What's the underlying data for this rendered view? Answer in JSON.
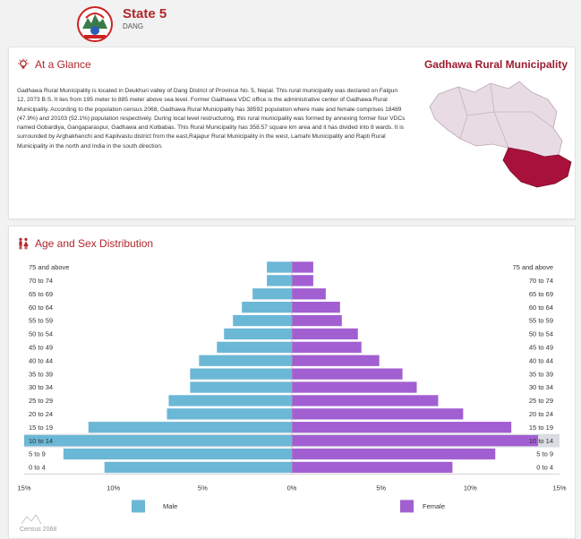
{
  "header": {
    "title": "State 5",
    "subtitle": "DANG"
  },
  "glance": {
    "heading": "At a Glance",
    "region_title": "Gadhawa Rural Municipality",
    "description": "Gadhawa Rural Municipality is located in Deukhuri valley of Dang District of Province No. 5, Nepal. This rural municipality was declared on Falgun 12, 2073 B.S. It lies from 195 meter to 885 meter above sea level. Former Gadhawa VDC office is the administrative center of Gadhawa Rural Municipality. According to the population census 2068, Gadhawa Rural Municipality has 38592 population where male and female comprises 18489 (47.9%) and 20103 (52.1%) population respectively. During local level restructuring, this rural municipality was formed by annexing former four VDCs named Gobardiya, Gangaparaspur, Gadhawa and Kolbabas. This Rural Municipality has 358.57 square km area and it has divided into 8 wards. It is surrounded by Arghakhanchi and Kapilvastu district from the east,Rajapur Rural Municipality in the west, Lamahi Municipality and Rapti Rural Municipality in the north and India in the south direction."
  },
  "age_sex": {
    "heading": "Age and Sex Distribution",
    "footer": "Census 2068"
  },
  "colors": {
    "male": "#6bb7d6",
    "female": "#a25fd1",
    "accent": "#b0262b",
    "map_base": "#e8dbe4",
    "map_highlight": "#a8123a"
  },
  "icons": {
    "glance": "bulb-icon",
    "age_sex": "people-icon"
  },
  "chart_data": {
    "type": "bar",
    "orientation": "horizontal-population-pyramid",
    "categories": [
      "75 and above",
      "70 to 74",
      "65 to 69",
      "60 to 64",
      "55 to 59",
      "50 to 54",
      "45 to 49",
      "40 to 44",
      "35 to 39",
      "30 to 34",
      "25 to 29",
      "20 to 24",
      "15 to 19",
      "10 to 14",
      "5 to 9",
      "0 to 4"
    ],
    "series": [
      {
        "name": "Male",
        "values": [
          1.4,
          1.4,
          2.2,
          2.8,
          3.3,
          3.8,
          4.2,
          5.2,
          5.7,
          5.7,
          6.9,
          7.0,
          11.4,
          15.0,
          12.8,
          10.5
        ]
      },
      {
        "name": "Female",
        "values": [
          1.2,
          1.2,
          1.9,
          2.7,
          2.8,
          3.7,
          3.9,
          4.9,
          6.2,
          7.0,
          8.2,
          9.6,
          12.3,
          13.8,
          11.4,
          9.0
        ]
      }
    ],
    "x_ticks": [
      "15%",
      "10%",
      "5%",
      "0%",
      "5%",
      "10%",
      "15%"
    ],
    "xlim": [
      -15,
      15
    ],
    "highlighted_category": "10 to 14",
    "legend": "bottom"
  }
}
